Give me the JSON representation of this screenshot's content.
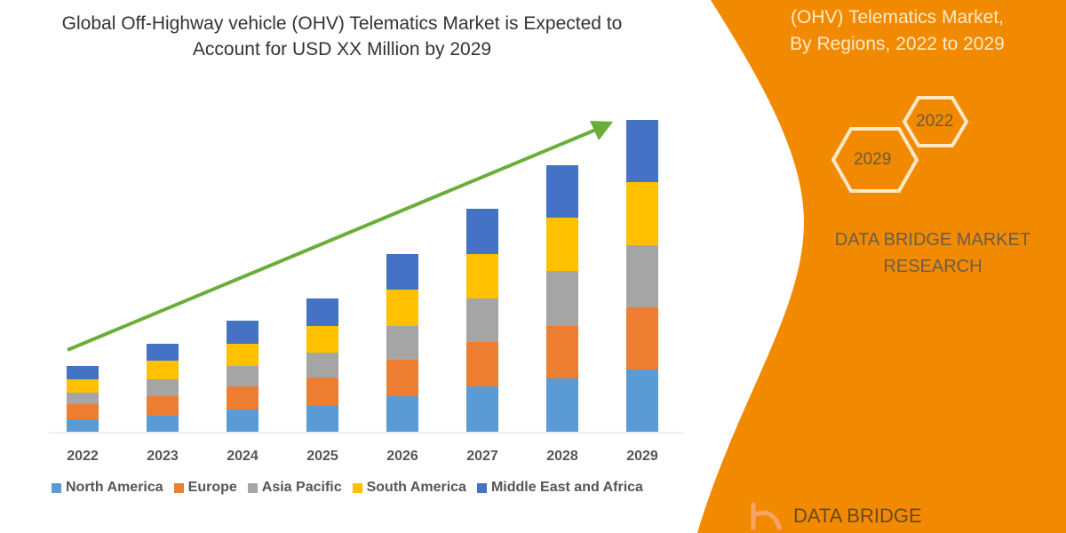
{
  "title": "Global Off-Highway vehicle (OHV) Telematics Market is Expected to Account for USD XX Million by 2029",
  "side_panel": {
    "title_lines": [
      "(OHV) Telematics Market,",
      "By Regions, 2022 to 2029"
    ],
    "hex_labels": [
      "2022",
      "2029"
    ],
    "brand_lines": [
      "DATA BRIDGE MARKET",
      "RESEARCH"
    ],
    "logo_text": "DATA BRIDGE",
    "color": "#F28A00"
  },
  "chart_data": {
    "type": "bar",
    "stacked": true,
    "title": "Global Off-Highway vehicle (OHV) Telematics Market is Expected to Account for USD XX Million by 2029",
    "xlabel": "",
    "ylabel": "",
    "y_axis_shown": false,
    "grid": false,
    "legend_placement": "bottom",
    "trend_arrow": true,
    "trend_arrow_color": "#6AAE3A",
    "categories": [
      "2022",
      "2023",
      "2024",
      "2025",
      "2026",
      "2027",
      "2028",
      "2029"
    ],
    "series": [
      {
        "name": "North America",
        "color": "#5B9BD5",
        "values": [
          14,
          18,
          25,
          29,
          40,
          51,
          60,
          70
        ]
      },
      {
        "name": "Europe",
        "color": "#ED7D31",
        "values": [
          17,
          22,
          26,
          32,
          41,
          50,
          59,
          70
        ]
      },
      {
        "name": "Asia Pacific",
        "color": "#A5A5A5",
        "values": [
          13,
          19,
          23,
          28,
          38,
          49,
          62,
          70
        ]
      },
      {
        "name": "South America",
        "color": "#FFC000",
        "values": [
          15,
          21,
          25,
          30,
          41,
          50,
          60,
          71
        ]
      },
      {
        "name": "Middle East and Africa",
        "color": "#4472C4",
        "values": [
          15,
          19,
          26,
          31,
          40,
          51,
          59,
          70
        ]
      }
    ]
  }
}
